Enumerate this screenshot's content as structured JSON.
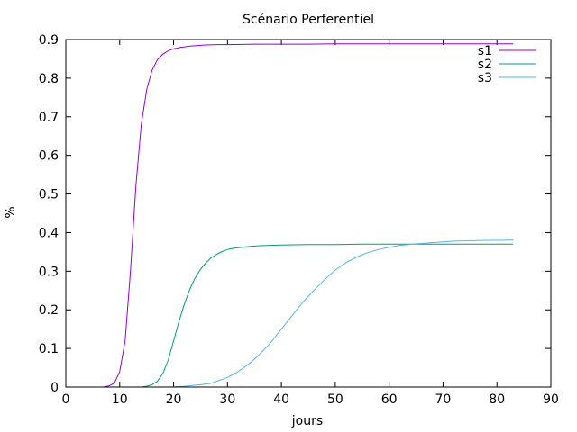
{
  "chart_data": {
    "type": "line",
    "title": "Scénario Perferentiel",
    "xlabel": "jours",
    "ylabel": "%",
    "xlim": [
      0,
      90
    ],
    "ylim": [
      0,
      0.9
    ],
    "x_ticks": [
      "0",
      "10",
      "20",
      "30",
      "40",
      "50",
      "60",
      "70",
      "80",
      "90"
    ],
    "y_ticks": [
      "0",
      "0.1",
      "0.2",
      "0.3",
      "0.4",
      "0.5",
      "0.6",
      "0.7",
      "0.8",
      "0.9"
    ],
    "x_tick_values": [
      0,
      10,
      20,
      30,
      40,
      50,
      60,
      70,
      80,
      90
    ],
    "y_tick_values": [
      0,
      0.1,
      0.2,
      0.3,
      0.4,
      0.5,
      0.6,
      0.7,
      0.8,
      0.9
    ],
    "grid": false,
    "legend_position": "top-right",
    "series": [
      {
        "name": "s1",
        "color": "#9400d3",
        "x": [
          7,
          8,
          9,
          10,
          11,
          12,
          13,
          14,
          15,
          16,
          17,
          18,
          19,
          20,
          21,
          22,
          23,
          24,
          25,
          26,
          28,
          30,
          35,
          40,
          45,
          50,
          55,
          60,
          65,
          70,
          75,
          80,
          83
        ],
        "y": [
          0,
          0.003,
          0.01,
          0.04,
          0.12,
          0.3,
          0.52,
          0.68,
          0.77,
          0.82,
          0.848,
          0.862,
          0.871,
          0.876,
          0.879,
          0.881,
          0.883,
          0.884,
          0.885,
          0.886,
          0.887,
          0.887,
          0.888,
          0.888,
          0.888,
          0.889,
          0.889,
          0.889,
          0.889,
          0.889,
          0.889,
          0.889,
          0.889
        ]
      },
      {
        "name": "s2",
        "color": "#009e73",
        "x": [
          14,
          15,
          16,
          17,
          18,
          19,
          20,
          21,
          22,
          23,
          24,
          25,
          26,
          27,
          28,
          29,
          30,
          31,
          32,
          34,
          36,
          40,
          45,
          50,
          55,
          60,
          65,
          70,
          75,
          80,
          83
        ],
        "y": [
          0,
          0.002,
          0.006,
          0.015,
          0.035,
          0.07,
          0.12,
          0.17,
          0.215,
          0.253,
          0.283,
          0.305,
          0.322,
          0.335,
          0.344,
          0.351,
          0.356,
          0.359,
          0.361,
          0.364,
          0.366,
          0.368,
          0.369,
          0.369,
          0.37,
          0.37,
          0.37,
          0.37,
          0.37,
          0.37,
          0.37
        ]
      },
      {
        "name": "s3",
        "color": "#56b4e9",
        "x": [
          19,
          22,
          25,
          27,
          28,
          30,
          32,
          34,
          36,
          38,
          40,
          42,
          44,
          46,
          48,
          50,
          52,
          54,
          56,
          58,
          60,
          62,
          65,
          68,
          70,
          72,
          75,
          78,
          80,
          83
        ],
        "y": [
          0,
          0.002,
          0.006,
          0.01,
          0.015,
          0.025,
          0.04,
          0.06,
          0.085,
          0.115,
          0.15,
          0.185,
          0.22,
          0.25,
          0.278,
          0.303,
          0.322,
          0.337,
          0.348,
          0.356,
          0.362,
          0.367,
          0.371,
          0.374,
          0.376,
          0.378,
          0.379,
          0.38,
          0.38,
          0.381
        ]
      }
    ]
  }
}
